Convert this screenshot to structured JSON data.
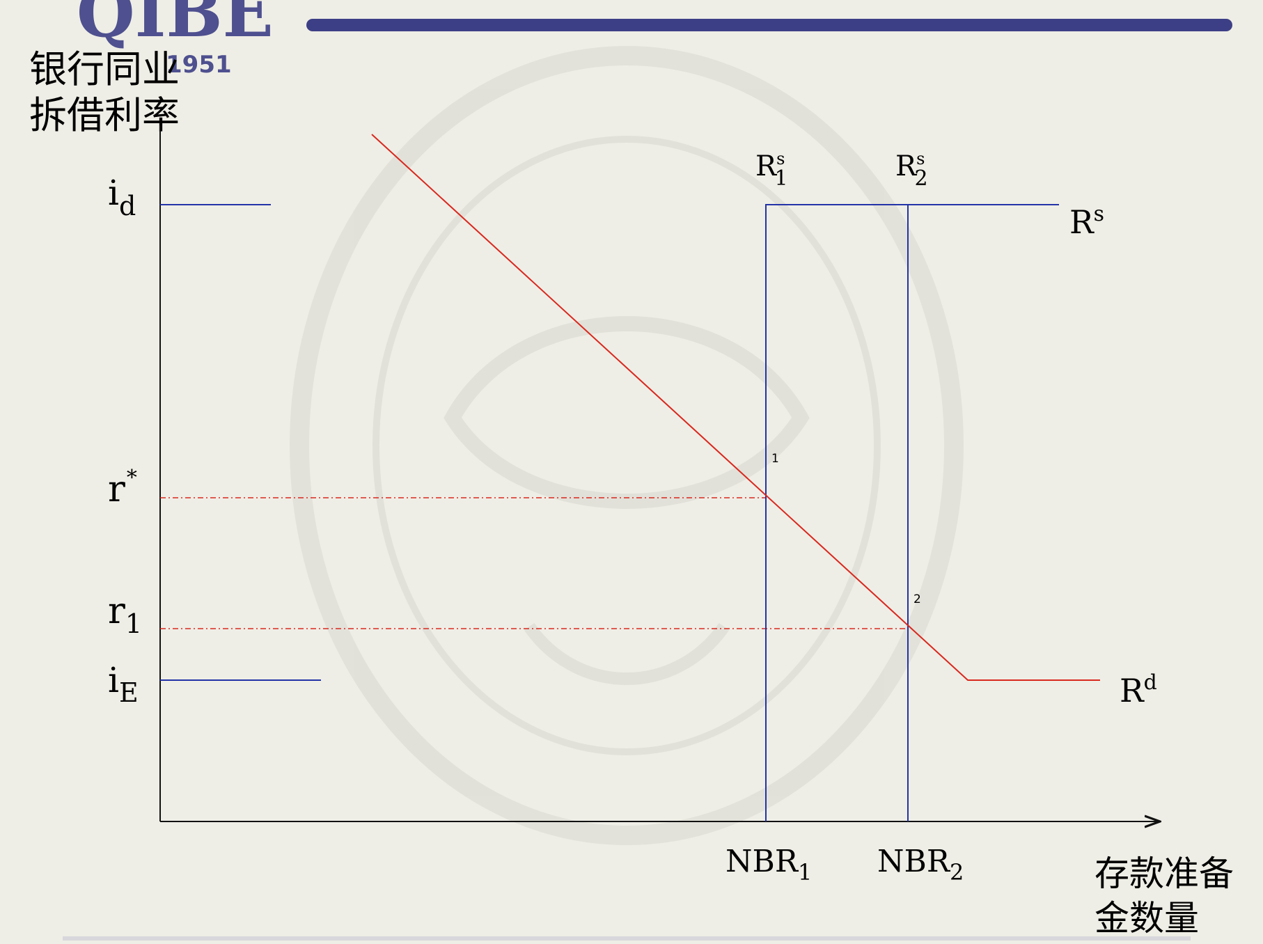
{
  "header": {
    "logo_text": "QIBE",
    "logo_year": "1951",
    "bar_color": "#3d3f86"
  },
  "diagram": {
    "y_axis_label_line1": "银行同业",
    "y_axis_label_line2": "拆借利率",
    "x_axis_label_line1": "存款准备",
    "x_axis_label_line2": "金数量",
    "labels": {
      "i_d": {
        "base": "i",
        "sub": "d"
      },
      "r_star": {
        "base": "r",
        "sup": "*"
      },
      "r_1": {
        "base": "r",
        "sub": "1"
      },
      "i_E": {
        "base": "i",
        "sub": "E"
      },
      "R_s": {
        "base": "R",
        "sup": "s"
      },
      "R_d": {
        "base": "R",
        "sup": "d"
      },
      "R1_s": {
        "base": "R",
        "sup": "s",
        "sub": "1"
      },
      "R2_s": {
        "base": "R",
        "sup": "s",
        "sub": "2"
      },
      "NBR_1": {
        "base": "NBR",
        "sub": "1"
      },
      "NBR_2": {
        "base": "NBR",
        "sub": "2"
      },
      "point_1": "1",
      "point_2": "2"
    },
    "colors": {
      "supply": "#2233a8",
      "demand": "#d8281e",
      "axis": "#111111",
      "dashed": "#d8281e"
    }
  }
}
